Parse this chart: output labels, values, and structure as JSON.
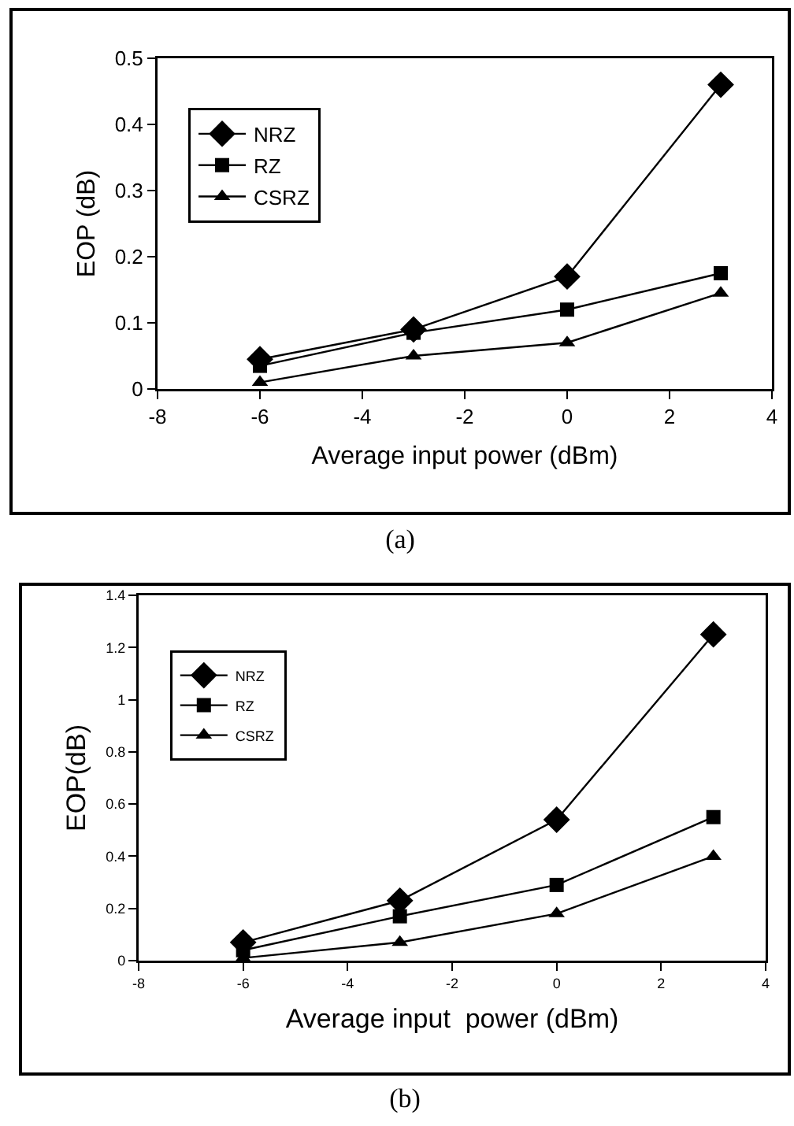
{
  "chart_data": [
    {
      "type": "line",
      "xlabel": "Average input power (dBm)",
      "ylabel": "EOP (dB)",
      "x": [
        -6,
        -3,
        0,
        3
      ],
      "xlim": [
        -8,
        4
      ],
      "xticks": [
        -8,
        -6,
        -4,
        -2,
        0,
        2,
        4
      ],
      "ylim": [
        0,
        0.5
      ],
      "yticks": [
        0,
        0.1,
        0.2,
        0.3,
        0.4,
        0.5
      ],
      "grid": false,
      "legend": "top left",
      "annotations": [
        "(a)"
      ],
      "series": [
        {
          "name": "NRZ",
          "color": "#000000",
          "marker": "diamond",
          "values": [
            0.045,
            0.09,
            0.17,
            0.46
          ]
        },
        {
          "name": "RZ",
          "color": "#000000",
          "marker": "square",
          "values": [
            0.035,
            0.085,
            0.12,
            0.175
          ]
        },
        {
          "name": "CSRZ",
          "color": "#000000",
          "marker": "triangle",
          "values": [
            0.01,
            0.05,
            0.07,
            0.145
          ]
        }
      ]
    },
    {
      "type": "line",
      "xlabel": "Average input  power (dBm)",
      "ylabel": "EOP(dB)",
      "x": [
        -6,
        -3,
        0,
        3
      ],
      "xlim": [
        -8,
        4
      ],
      "xticks": [
        -8,
        -6,
        -4,
        -2,
        0,
        2,
        4
      ],
      "ylim": [
        0,
        1.4
      ],
      "yticks": [
        0,
        0.2,
        0.4,
        0.6,
        0.8,
        1,
        1.2,
        1.4
      ],
      "grid": false,
      "legend": "top left",
      "annotations": [
        "(b)"
      ],
      "series": [
        {
          "name": "NRZ",
          "color": "#000000",
          "marker": "diamond",
          "values": [
            0.07,
            0.23,
            0.54,
            1.25
          ]
        },
        {
          "name": "RZ",
          "color": "#000000",
          "marker": "square",
          "values": [
            0.04,
            0.17,
            0.29,
            0.55
          ]
        },
        {
          "name": "CSRZ",
          "color": "#000000",
          "marker": "triangle",
          "values": [
            0.01,
            0.07,
            0.18,
            0.4
          ]
        }
      ]
    }
  ]
}
